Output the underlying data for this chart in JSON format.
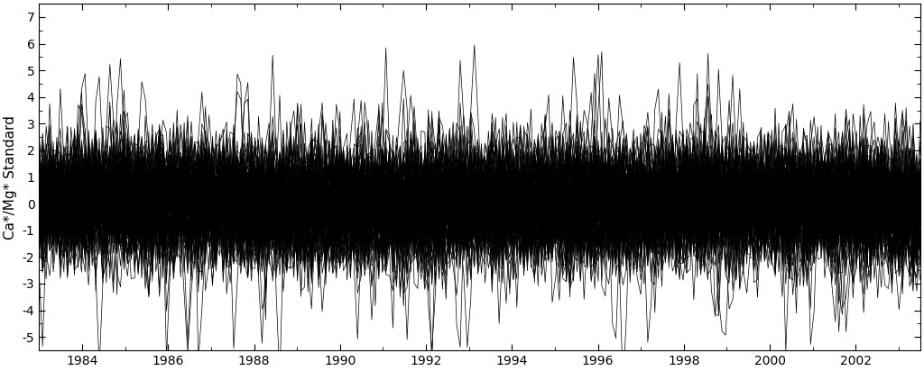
{
  "title": "",
  "ylabel": "Ca*/Mg* Standard",
  "xlabel": "",
  "xlim": [
    1983.0,
    2003.5
  ],
  "ylim": [
    -5.5,
    7.5
  ],
  "yticks": [
    -5,
    -4,
    -3,
    -2,
    -1,
    0,
    1,
    2,
    3,
    4,
    5,
    6,
    7
  ],
  "xticks": [
    1984,
    1986,
    1988,
    1990,
    1992,
    1994,
    1996,
    1998,
    2000,
    2002
  ],
  "n_series": 120,
  "t_start": 1983.0,
  "t_end": 2003.5,
  "n_points": 250,
  "line_color": "#000000",
  "line_width": 0.5,
  "line_alpha": 1.0,
  "background_color": "#ffffff",
  "seed": 12345
}
